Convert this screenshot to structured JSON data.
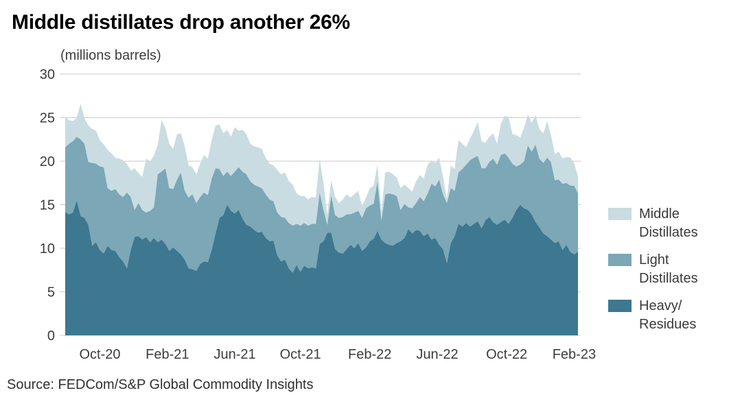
{
  "header": {
    "title": "Middle distillates drop another 26%",
    "unit_label": "(millions barrels)"
  },
  "source": {
    "text": "Source: FEDCom/S&P Global Commodity Insights"
  },
  "colors": {
    "middle_distillates": "#c9dce2",
    "light_distillates": "#7ba7b6",
    "heavy_residues": "#3d7890",
    "gridline": "#cbcbcb",
    "tick_text": "#3c3c3c"
  },
  "legend": [
    {
      "line1": "Middle",
      "line2": "Distillates",
      "color": "#c9dce2"
    },
    {
      "line1": "Light",
      "line2": "Distillates",
      "color": "#7ba7b6"
    },
    {
      "line1": "Heavy/",
      "line2": "Residues",
      "color": "#3d7890"
    }
  ],
  "chart_data": {
    "type": "area",
    "stacked": true,
    "title": "Middle distillates drop another 26%",
    "ylabel": "(millions barrels)",
    "grid": true,
    "legend_position": "right",
    "ylim": [
      0,
      30
    ],
    "yticks": [
      0,
      5,
      10,
      15,
      20,
      25,
      30
    ],
    "x_unit": "weekly observations, Aug-2020 to Feb-2023",
    "xticks": [
      {
        "label": "Oct-20",
        "index": 9
      },
      {
        "label": "Feb-21",
        "index": 26.5
      },
      {
        "label": "Jun-21",
        "index": 44
      },
      {
        "label": "Oct-21",
        "index": 61
      },
      {
        "label": "Feb-22",
        "index": 79
      },
      {
        "label": "Jun-22",
        "index": 96.5
      },
      {
        "label": "Oct-22",
        "index": 114.5
      },
      {
        "label": "Feb-23",
        "index": 132
      }
    ],
    "series": [
      {
        "name": "Heavy/Residues",
        "color": "#3d7890",
        "values": [
          14.2,
          13.9,
          14.1,
          15.5,
          13.7,
          13.5,
          12.7,
          10.3,
          10.7,
          9.8,
          9.4,
          10.3,
          9.8,
          9.7,
          9.0,
          8.5,
          7.7,
          9.8,
          11.3,
          11.4,
          11.0,
          11.3,
          10.7,
          11.2,
          10.7,
          11.0,
          10.5,
          9.7,
          10.1,
          9.7,
          9.3,
          8.7,
          7.7,
          7.6,
          7.4,
          8.2,
          8.5,
          8.4,
          9.8,
          11.7,
          13.5,
          13.8,
          15.0,
          14.3,
          14.0,
          14.4,
          13.4,
          12.7,
          12.5,
          12.1,
          11.8,
          11.9,
          11.2,
          10.8,
          10.9,
          9.2,
          8.5,
          8.7,
          7.7,
          7.2,
          8.1,
          7.3,
          8.0,
          7.7,
          7.8,
          7.7,
          10.5,
          10.8,
          11.8,
          11.8,
          9.9,
          9.5,
          9.4,
          9.9,
          10.4,
          10.0,
          10.6,
          9.7,
          10.1,
          10.8,
          11.1,
          12.0,
          11.0,
          10.6,
          10.4,
          10.3,
          10.6,
          10.8,
          11.2,
          12.2,
          11.7,
          12.1,
          12.0,
          11.4,
          11.7,
          11.0,
          11.2,
          10.4,
          9.9,
          8.3,
          10.6,
          11.4,
          12.8,
          12.5,
          12.9,
          12.5,
          12.8,
          13.1,
          12.3,
          13.2,
          13.6,
          13.0,
          12.7,
          13.0,
          13.3,
          12.8,
          13.5,
          14.4,
          15.0,
          14.6,
          14.4,
          13.9,
          13.0,
          12.4,
          11.7,
          11.4,
          11.0,
          10.6,
          10.8,
          9.8,
          10.4,
          9.6,
          9.3,
          9.6
        ]
      },
      {
        "name": "Light Distillates",
        "color": "#7ba7b6",
        "values": [
          7.4,
          8.1,
          8.2,
          7.3,
          8.8,
          8.5,
          7.2,
          9.5,
          9.0,
          9.6,
          9.9,
          6.6,
          6.8,
          7.1,
          7.2,
          7.4,
          8.7,
          6.1,
          3.1,
          3.8,
          3.4,
          2.8,
          3.6,
          3.5,
          7.8,
          7.8,
          8.7,
          7.2,
          6.7,
          8.2,
          9.4,
          7.9,
          8.1,
          8.6,
          7.8,
          7.7,
          7.9,
          7.7,
          8.2,
          7.5,
          5.6,
          4.5,
          3.8,
          4.0,
          4.8,
          4.9,
          5.4,
          5.8,
          5.2,
          5.2,
          5.3,
          5.0,
          5.0,
          4.8,
          4.5,
          4.9,
          5.1,
          4.8,
          5.2,
          5.4,
          4.7,
          5.3,
          4.9,
          4.9,
          5.0,
          5.1,
          5.9,
          3.6,
          0.9,
          4.3,
          3.9,
          4.0,
          4.2,
          4.0,
          3.5,
          4.1,
          3.7,
          3.8,
          4.5,
          4.1,
          4.0,
          5.7,
          2.2,
          5.6,
          5.9,
          5.9,
          5.4,
          3.6,
          3.9,
          2.5,
          2.9,
          3.1,
          3.9,
          4.0,
          4.6,
          6.4,
          5.9,
          7.5,
          6.3,
          6.9,
          6.3,
          5.2,
          5.9,
          6.6,
          6.7,
          7.6,
          7.6,
          7.5,
          6.9,
          6.0,
          6.3,
          7.3,
          6.9,
          7.7,
          7.6,
          7.6,
          6.2,
          5.0,
          4.6,
          5.4,
          7.4,
          7.2,
          8.9,
          7.9,
          8.1,
          9.0,
          8.9,
          7.2,
          7.1,
          7.6,
          7.1,
          7.6,
          7.9,
          6.7
        ]
      },
      {
        "name": "Middle Distillates",
        "color": "#c9dce2",
        "values": [
          3.5,
          2.7,
          2.3,
          2.2,
          4.1,
          2.9,
          4.2,
          3.9,
          3.8,
          3.0,
          2.6,
          4.4,
          4.3,
          3.6,
          4.1,
          4.2,
          3.3,
          3.0,
          4.8,
          3.4,
          3.8,
          6.2,
          5.7,
          5.9,
          3.4,
          5.9,
          4.6,
          5.1,
          4.6,
          5.2,
          4.5,
          5.1,
          3.7,
          3.1,
          3.3,
          3.8,
          4.3,
          4.2,
          4.4,
          4.9,
          5.1,
          4.9,
          4.8,
          4.5,
          5.1,
          4.2,
          4.8,
          4.6,
          4.3,
          4.4,
          4.5,
          4.5,
          4.2,
          4.1,
          4.1,
          4.9,
          4.9,
          5.2,
          4.8,
          4.7,
          3.5,
          3.4,
          3.1,
          3.0,
          3.1,
          3.0,
          3.9,
          3.0,
          1.2,
          1.7,
          2.1,
          1.7,
          2.0,
          2.3,
          1.9,
          2.1,
          2.3,
          1.3,
          1.2,
          2.0,
          2.1,
          1.9,
          1.0,
          2.5,
          2.5,
          2.3,
          2.1,
          2.5,
          2.2,
          2.2,
          1.9,
          2.5,
          2.5,
          2.6,
          3.3,
          2.7,
          2.7,
          2.5,
          2.0,
          0.5,
          2.6,
          2.5,
          3.7,
          2.9,
          2.0,
          2.5,
          3.1,
          3.9,
          3.1,
          2.9,
          2.9,
          2.9,
          2.4,
          3.6,
          4.3,
          4.7,
          3.4,
          3.6,
          3.1,
          3.8,
          3.6,
          3.3,
          3.4,
          3.4,
          3.4,
          4.2,
          3.1,
          3.0,
          3.2,
          2.9,
          3.0,
          3.2,
          2.6,
          1.9
        ]
      }
    ]
  }
}
